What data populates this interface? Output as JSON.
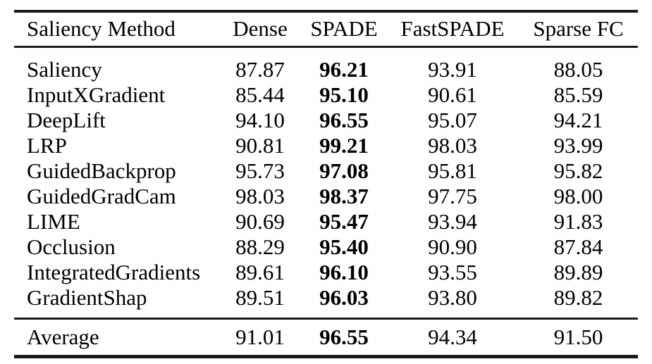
{
  "table": {
    "columns": [
      "Saliency Method",
      "Dense",
      "SPADE",
      "FastSPADE",
      "Sparse FC"
    ],
    "bold_column": "SPADE",
    "rows": [
      {
        "method": "Saliency",
        "dense": "87.87",
        "spade": "96.21",
        "fastspade": "93.91",
        "sparse_fc": "88.05"
      },
      {
        "method": "InputXGradient",
        "dense": "85.44",
        "spade": "95.10",
        "fastspade": "90.61",
        "sparse_fc": "85.59"
      },
      {
        "method": "DeepLift",
        "dense": "94.10",
        "spade": "96.55",
        "fastspade": "95.07",
        "sparse_fc": "94.21"
      },
      {
        "method": "LRP",
        "dense": "90.81",
        "spade": "99.21",
        "fastspade": "98.03",
        "sparse_fc": "93.99"
      },
      {
        "method": "GuidedBackprop",
        "dense": "95.73",
        "spade": "97.08",
        "fastspade": "95.81",
        "sparse_fc": "95.82"
      },
      {
        "method": "GuidedGradCam",
        "dense": "98.03",
        "spade": "98.37",
        "fastspade": "97.75",
        "sparse_fc": "98.00"
      },
      {
        "method": "LIME",
        "dense": "90.69",
        "spade": "95.47",
        "fastspade": "93.94",
        "sparse_fc": "91.83"
      },
      {
        "method": "Occlusion",
        "dense": "88.29",
        "spade": "95.40",
        "fastspade": "90.90",
        "sparse_fc": "87.84"
      },
      {
        "method": "IntegratedGradients",
        "dense": "89.61",
        "spade": "96.10",
        "fastspade": "93.55",
        "sparse_fc": "89.89"
      },
      {
        "method": "GradientShap",
        "dense": "89.51",
        "spade": "96.03",
        "fastspade": "93.80",
        "sparse_fc": "89.82"
      }
    ],
    "footer": {
      "method": "Average",
      "dense": "91.01",
      "spade": "96.55",
      "fastspade": "94.34",
      "sparse_fc": "91.50"
    },
    "colors": {
      "rule": "#1b1b1b",
      "text": "#000000",
      "background": "#ffffff"
    }
  }
}
